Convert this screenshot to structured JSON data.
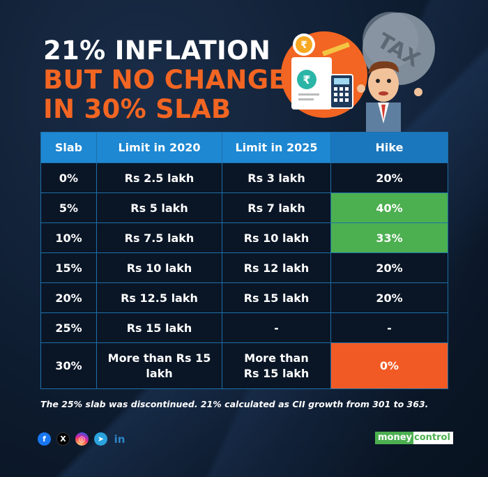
{
  "headline": {
    "line1": "21% INFLATION",
    "line2": "BUT NO CHANGE",
    "line3": "IN 30% SLAB"
  },
  "illustration": {
    "balloon_text": "TAX",
    "coin_symbol": "₹",
    "bill_symbol": "₹"
  },
  "table": {
    "headers": [
      "Slab",
      "Limit in 2020",
      "Limit in 2025",
      "Hike"
    ],
    "rows": [
      {
        "slab": "0%",
        "limit2020": "Rs 2.5 lakh",
        "limit2025": "Rs 3 lakh",
        "hike": "20%"
      },
      {
        "slab": "5%",
        "limit2020": "Rs 5 lakh",
        "limit2025": "Rs 7 lakh",
        "hike": "40%"
      },
      {
        "slab": "10%",
        "limit2020": "Rs 7.5 lakh",
        "limit2025": "Rs 10 lakh",
        "hike": "33%"
      },
      {
        "slab": "15%",
        "limit2020": "Rs 10 lakh",
        "limit2025": "Rs 12 lakh",
        "hike": "20%"
      },
      {
        "slab": "20%",
        "limit2020": "Rs 12.5 lakh",
        "limit2025": "Rs 15 lakh",
        "hike": "20%"
      },
      {
        "slab": "25%",
        "limit2020": "Rs 15 lakh",
        "limit2025": "-",
        "hike": "-"
      },
      {
        "slab": "30%",
        "limit2020_l1": "More than Rs 15",
        "limit2020_l2": "lakh",
        "limit2025_l1": "More than",
        "limit2025_l2": "Rs 15 lakh",
        "hike": "0%"
      }
    ]
  },
  "footnote": "The 25% slab was discontinued. 21% calculated as CII growth from 301 to 363.",
  "socials": {
    "facebook": "f",
    "x": "X",
    "instagram": "◎",
    "telegram": "➤",
    "linkedin": "in"
  },
  "brand": {
    "part1": "money",
    "part2": "control"
  },
  "colors": {
    "background": "#0d1b2e",
    "accent_orange": "#f26522",
    "header_blue": "#1e88d2",
    "highlight_green": "#4caf50",
    "highlight_orange": "#f15a24"
  }
}
